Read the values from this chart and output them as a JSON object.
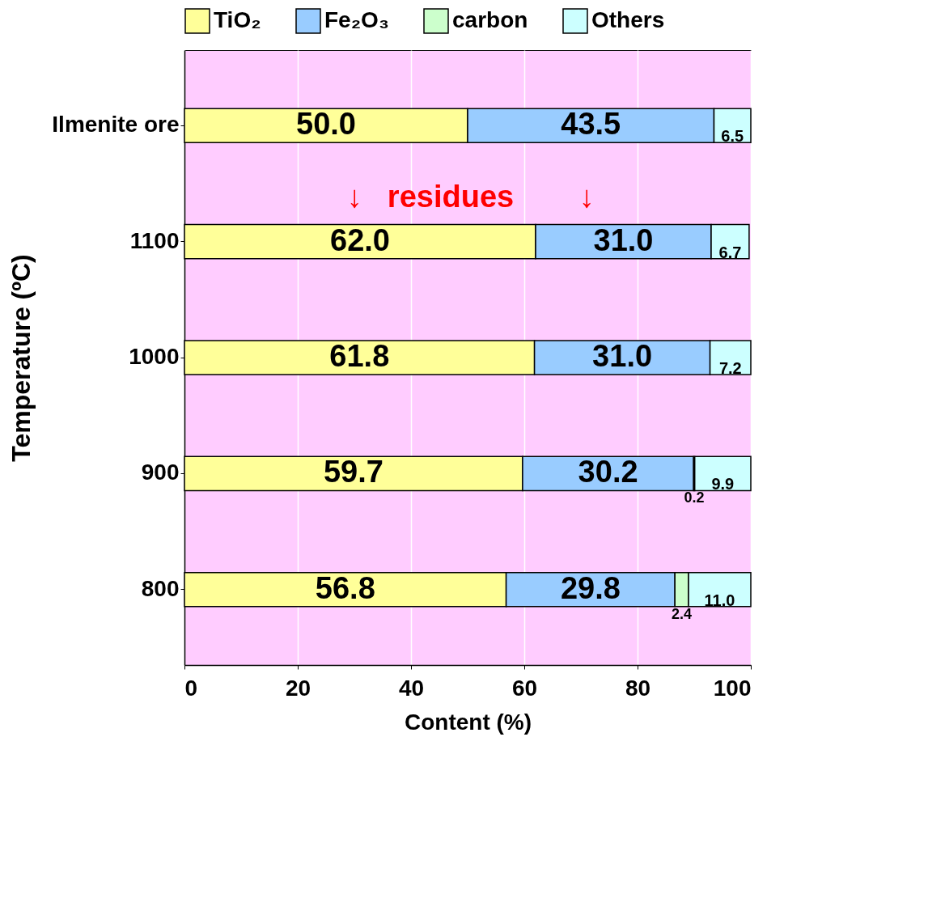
{
  "chart_data": {
    "type": "bar",
    "orientation": "horizontal",
    "stacked": true,
    "categories": [
      "Ilmenite ore",
      "1100",
      "1000",
      "900",
      "800"
    ],
    "series": [
      {
        "name": "TiO₂",
        "color": "#ffff99",
        "values": [
          50.0,
          62.0,
          61.8,
          59.7,
          56.8
        ],
        "value_labels": [
          "50.0",
          "62.0",
          "61.8",
          "59.7",
          "56.8"
        ]
      },
      {
        "name": "Fe₂O₃",
        "color": "#99ccff",
        "values": [
          43.5,
          31.0,
          31.0,
          30.2,
          29.8
        ],
        "value_labels": [
          "43.5",
          "31.0",
          "31.0",
          "30.2",
          "29.8"
        ]
      },
      {
        "name": "carbon",
        "color": "#ccffcc",
        "values": [
          null,
          null,
          null,
          0.2,
          2.4
        ],
        "value_labels": [
          null,
          null,
          null,
          "0.2",
          "2.4"
        ]
      },
      {
        "name": "Others",
        "color": "#ccffff",
        "values": [
          6.5,
          6.7,
          7.2,
          9.9,
          11.0
        ],
        "value_labels": [
          "6.5",
          "6.7",
          "7.2",
          "9.9",
          "11.0"
        ]
      }
    ],
    "xlim": [
      0,
      100
    ],
    "xticks": [
      0,
      20,
      40,
      60,
      80,
      100
    ],
    "grid": "x",
    "legend": "top",
    "xlabel": "Content (%)",
    "ylabel": "Temperature (ºC)",
    "annotations": [
      "↓",
      "residues",
      "↓"
    ]
  }
}
